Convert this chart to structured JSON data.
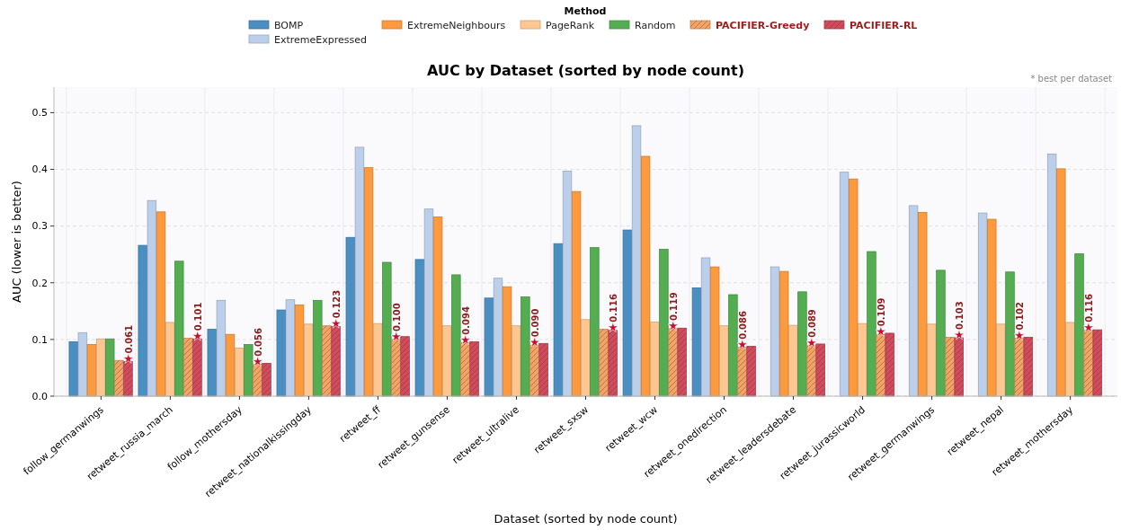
{
  "chart_data": {
    "type": "bar",
    "title": "AUC by Dataset (sorted by node count)",
    "xlabel": "Dataset (sorted by node count)",
    "ylabel": "AUC (lower is better)",
    "legend_title": "Method",
    "annotations": [
      "* best per dataset"
    ],
    "categories": [
      "follow_germanwings",
      "retweet_russia_march",
      "follow_mothersday",
      "retweet_nationalkissingday",
      "retweet_ff",
      "retweet_gunsense",
      "retweet_ultralive",
      "retweet_sxsw",
      "retweet_wcw",
      "retweet_onedirection",
      "retweet_leadersdebate",
      "retweet_jurassicworld",
      "retweet_germanwings",
      "retweet_nepal",
      "retweet_mothersday"
    ],
    "series": [
      {
        "name": "BOMP",
        "color": "#4a8fc2",
        "values": [
          0.096,
          0.266,
          0.118,
          0.152,
          0.28,
          0.241,
          0.173,
          0.269,
          0.293,
          0.191,
          null,
          null,
          null,
          null,
          null
        ]
      },
      {
        "name": "ExtremeExpressed",
        "color": "#bccfea",
        "values": [
          0.112,
          0.345,
          0.169,
          0.17,
          0.439,
          0.33,
          0.208,
          0.397,
          0.477,
          0.244,
          0.228,
          0.395,
          0.336,
          0.323,
          0.427
        ]
      },
      {
        "name": "ExtremeNeighbours",
        "color": "#fd9a3d",
        "values": [
          0.091,
          0.325,
          0.109,
          0.161,
          0.403,
          0.316,
          0.193,
          0.361,
          0.423,
          0.228,
          0.22,
          0.383,
          0.324,
          0.312,
          0.401
        ]
      },
      {
        "name": "PageRank",
        "color": "#fec792",
        "values": [
          0.101,
          0.13,
          0.085,
          0.127,
          0.128,
          0.124,
          0.124,
          0.135,
          0.131,
          0.124,
          0.125,
          0.128,
          0.127,
          0.127,
          0.13
        ]
      },
      {
        "name": "Random",
        "color": "#55ad52",
        "values": [
          0.101,
          0.238,
          0.091,
          0.169,
          0.236,
          0.214,
          0.175,
          0.262,
          0.259,
          0.179,
          0.184,
          0.255,
          0.222,
          0.219,
          0.251
        ]
      },
      {
        "name": "PACIFIER-Greedy",
        "color": "#f2a466",
        "values": [
          0.063,
          0.102,
          0.056,
          0.124,
          0.1,
          0.094,
          0.09,
          0.118,
          0.119,
          0.086,
          0.089,
          0.109,
          0.104,
          0.102,
          0.116
        ],
        "value_labels": [
          null,
          null,
          "0.056",
          null,
          "0.100",
          "0.094",
          "0.090",
          null,
          "0.119",
          "0.086",
          "0.089",
          "0.109",
          null,
          "0.102",
          "0.116"
        ]
      },
      {
        "name": "PACIFIER-RL",
        "color": "#d14b5e",
        "values": [
          0.061,
          0.101,
          0.058,
          0.123,
          0.105,
          0.096,
          0.093,
          0.116,
          0.12,
          0.088,
          0.092,
          0.111,
          0.103,
          0.104,
          0.117
        ],
        "value_labels": [
          "0.061",
          "0.101",
          null,
          "0.123",
          null,
          null,
          null,
          "0.116",
          null,
          null,
          null,
          null,
          "0.103",
          null,
          null
        ]
      }
    ],
    "ylim": [
      0,
      0.545
    ],
    "yticks": [
      {
        "value": 0,
        "label": "0.0"
      },
      {
        "value": 0.1,
        "label": "0.1"
      },
      {
        "value": 0.2,
        "label": "0.2"
      },
      {
        "value": 0.3,
        "label": "0.3"
      },
      {
        "value": 0.4,
        "label": "0.4"
      },
      {
        "value": 0.5,
        "label": "0.5"
      }
    ],
    "grid": true,
    "legend": "top"
  }
}
